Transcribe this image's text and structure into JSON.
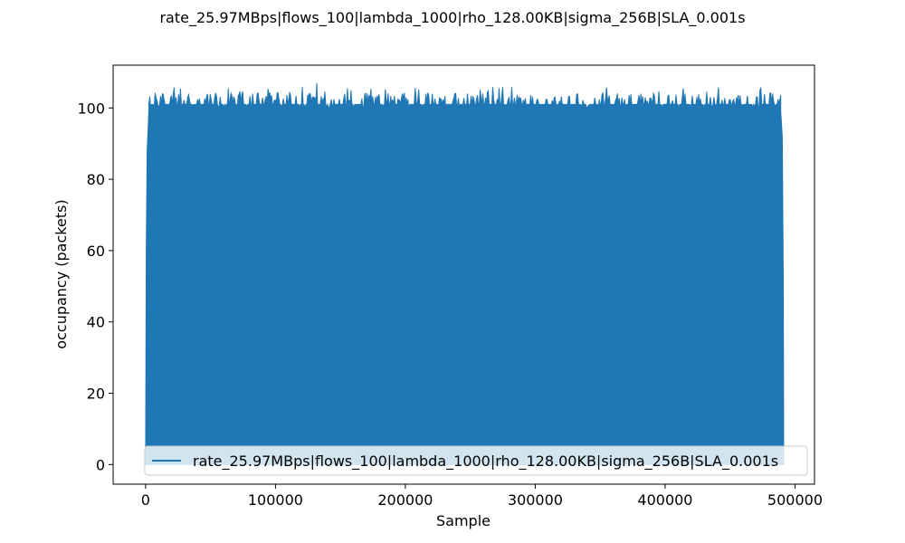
{
  "chart_data": {
    "type": "area",
    "title": "rate_25.97MBps|flows_100|lambda_1000|rho_128.00KB|sigma_256B|SLA_0.001s",
    "xlabel": "Sample",
    "ylabel": "occupancy (packets)",
    "xlim": [
      -25000,
      515000
    ],
    "ylim": [
      -5.5,
      112
    ],
    "x_ticks": [
      0,
      100000,
      200000,
      300000,
      400000,
      500000
    ],
    "x_tick_labels": [
      "0",
      "100000",
      "200000",
      "300000",
      "400000",
      "500000"
    ],
    "y_ticks": [
      0,
      20,
      40,
      60,
      80,
      100
    ],
    "y_tick_labels": [
      "0",
      "20",
      "40",
      "60",
      "80",
      "100"
    ],
    "grid": false,
    "legend_position": "lower-right",
    "series": [
      {
        "name": "rate_25.97MBps|flows_100|lambda_1000|rho_128.00KB|sigma_256B|SLA_0.001s",
        "color": "#1f77b4",
        "x_range": [
          0,
          491000
        ],
        "min": 0,
        "typical_max": 101,
        "peak": 107,
        "peak_at": 132000,
        "ramp_up": [
          [
            0,
            0
          ],
          [
            500,
            60
          ],
          [
            1200,
            88
          ],
          [
            2500,
            99
          ]
        ],
        "ramp_down": [
          [
            489000,
            99
          ],
          [
            490200,
            92
          ],
          [
            491000,
            50
          ],
          [
            491300,
            0
          ]
        ]
      }
    ]
  }
}
